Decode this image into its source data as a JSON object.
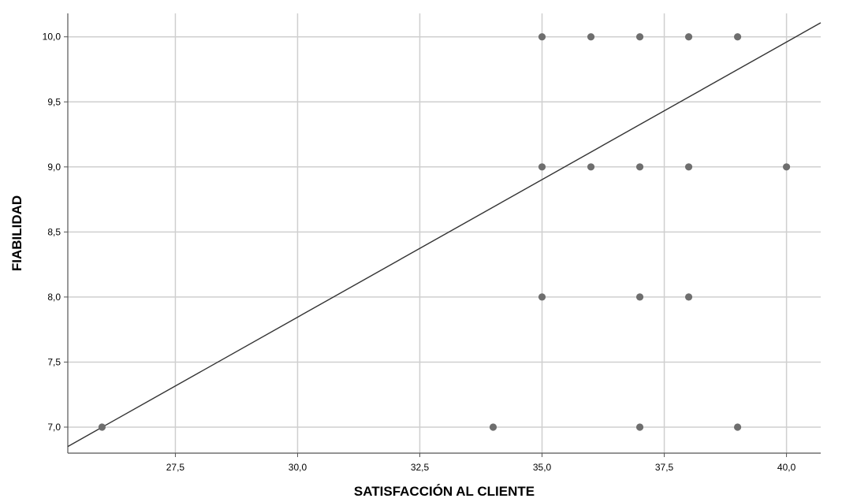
{
  "chart_data": {
    "type": "scatter",
    "title": "",
    "xlabel": "SATISFACCIÓN AL CLIENTE",
    "ylabel": "FIABILIDAD",
    "xlim": [
      25.3,
      40.7
    ],
    "ylim": [
      6.8,
      10.18
    ],
    "xticks": [
      27.5,
      30.0,
      32.5,
      35.0,
      37.5,
      40.0
    ],
    "yticks": [
      7.0,
      7.5,
      8.0,
      8.5,
      9.0,
      9.5,
      10.0
    ],
    "xtick_labels": [
      "27,5",
      "30,0",
      "32,5",
      "35,0",
      "37,5",
      "40,0"
    ],
    "ytick_labels": [
      "7,0",
      "7,5",
      "8,0",
      "8,5",
      "9,0",
      "9,5",
      "10,0"
    ],
    "grid": true,
    "points_color": "#6e6e6e",
    "fit_line_color": "#333333",
    "series": [
      {
        "points": [
          [
            26,
            7.0
          ],
          [
            34,
            7.0
          ],
          [
            37,
            7.0
          ],
          [
            39,
            7.0
          ],
          [
            35,
            8.0
          ],
          [
            37,
            8.0
          ],
          [
            38,
            8.0
          ],
          [
            35,
            9.0
          ],
          [
            36,
            9.0
          ],
          [
            37,
            9.0
          ],
          [
            38,
            9.0
          ],
          [
            40,
            9.0
          ],
          [
            35,
            10.0
          ],
          [
            36,
            10.0
          ],
          [
            37,
            10.0
          ],
          [
            38,
            10.0
          ],
          [
            39,
            10.0
          ]
        ]
      }
    ],
    "fit_line": {
      "slope": 0.2115,
      "intercept": 1.5
    }
  }
}
